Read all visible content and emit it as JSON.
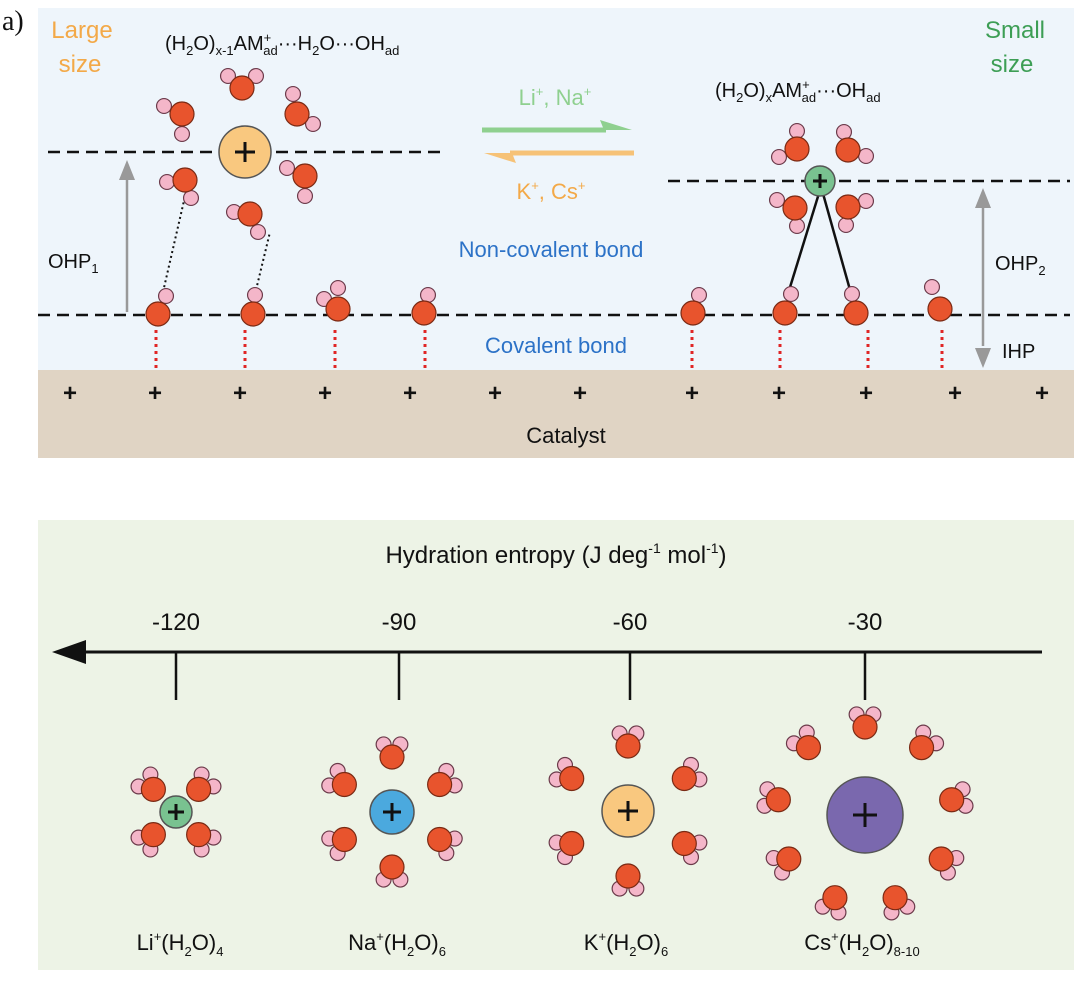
{
  "panel_label": "a)",
  "top": {
    "large_size": [
      "Large",
      "size"
    ],
    "small_size": [
      "Small",
      "size"
    ],
    "left_formula": {
      "p1": "(H",
      "s1": "2",
      "p2": "O)",
      "s2": "x-1",
      "p3": "AM",
      "sup": "+",
      "s3": "ad",
      "p4": "···H",
      "s4": "2",
      "p5": "O···OH",
      "s5": "ad"
    },
    "right_formula": {
      "p1": "(H",
      "s1": "2",
      "p2": "O)",
      "s2": "x",
      "p3": "AM",
      "sup": "+",
      "s3": "ad",
      "p4": "···OH",
      "s4": "ad"
    },
    "arrow_forward": {
      "a": "Li",
      "sa": "+",
      "b": ", Na",
      "sb": "+"
    },
    "arrow_backward": {
      "a": "K",
      "sa": "+",
      "b": ", Cs",
      "sb": "+"
    },
    "non_covalent_bond": "Non-covalent bond",
    "covalent_bond": "Covalent bond",
    "ohp1": {
      "t": "OHP",
      "s": "1"
    },
    "ohp2": {
      "t": "OHP",
      "s": "2"
    },
    "ihp": "IHP",
    "catalyst": "Catalyst",
    "catalyst_charge": "+",
    "colors": {
      "background": "#eef5fb",
      "catalyst": "#e0d4c4",
      "large_size": "#f3a948",
      "small_size": "#3d9e55",
      "bond_label": "#2c72c7",
      "forward_arrow": "#8fd08f",
      "backward_arrow": "#f6c277",
      "oxygen": "#e8542d",
      "hydrogen": "#f4b6c9"
    }
  },
  "bottom": {
    "axis_title": {
      "t": "Hydration entropy (J deg",
      "e1": "-1",
      "t2": " mol",
      "e2": "-1",
      "t3": ")"
    },
    "ticks": [
      "-120",
      "-90",
      "-60",
      "-30"
    ],
    "ions": [
      {
        "ion": "Li",
        "charge": "+",
        "water": "4",
        "color": "#79c290"
      },
      {
        "ion": "Na",
        "charge": "+",
        "water": "6",
        "color": "#4ba9de"
      },
      {
        "ion": "K",
        "charge": "+",
        "water": "6",
        "color": "#f9c87f"
      },
      {
        "ion": "Cs",
        "charge": "+",
        "water": "8-10",
        "color": "#7a68ae"
      }
    ],
    "colors": {
      "background": "#edf3e6"
    }
  }
}
